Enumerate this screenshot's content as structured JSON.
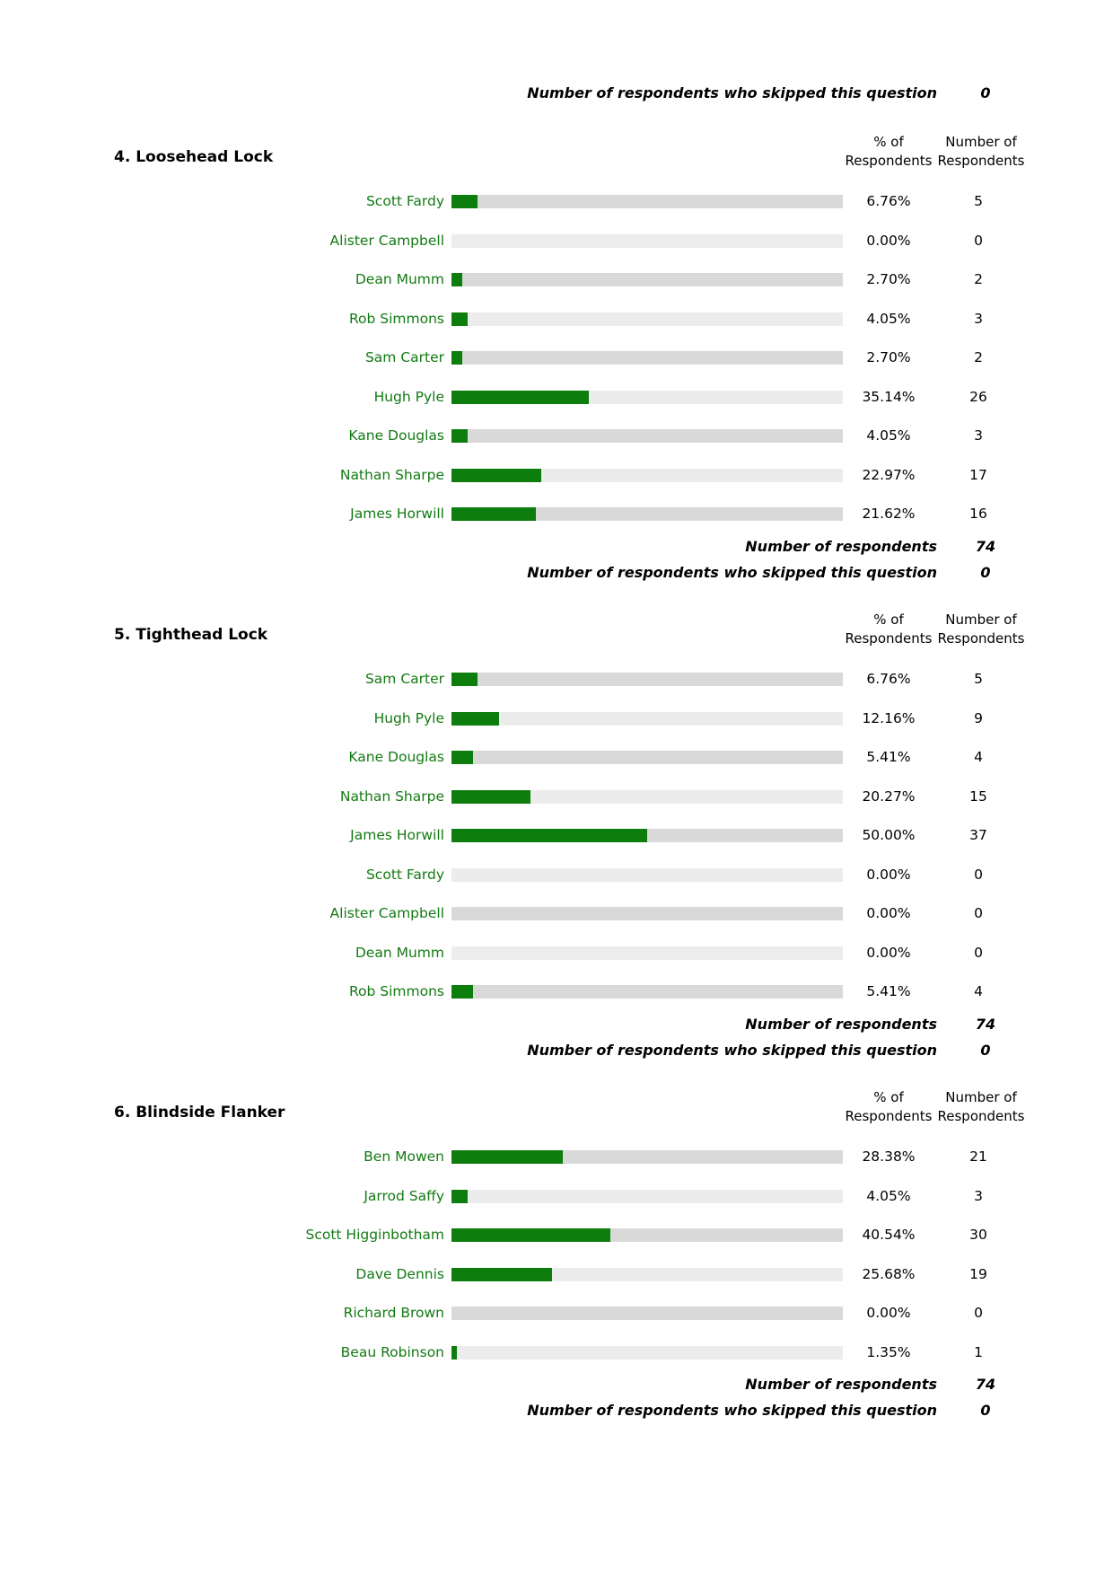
{
  "labels": {
    "pct_header_line1": "% of",
    "pct_header_line2": "Respondents",
    "num_header_line1": "Number of",
    "num_header_line2": "Respondents",
    "respondents": "Number of respondents",
    "skipped": "Number of respondents who skipped this question"
  },
  "top_summary": {
    "skipped_value": "0"
  },
  "colors": {
    "bar_fill": "#0d7d0d",
    "track_dark": "#d9d9d9",
    "track_light": "#ececec",
    "label": "#137a13"
  },
  "chart_data": [
    {
      "type": "bar",
      "title": "4. Loosehead Lock",
      "orientation": "horizontal",
      "xlim": [
        0,
        100
      ],
      "unit": "% of respondents",
      "categories": [
        "Scott Fardy",
        "Alister Campbell",
        "Dean Mumm",
        "Rob Simmons",
        "Sam Carter",
        "Hugh Pyle",
        "Kane Douglas",
        "Nathan Sharpe",
        "James Horwill"
      ],
      "values": [
        6.76,
        0.0,
        2.7,
        4.05,
        2.7,
        35.14,
        4.05,
        22.97,
        21.62
      ],
      "percent_labels": [
        "6.76%",
        "0.00%",
        "2.70%",
        "4.05%",
        "2.70%",
        "35.14%",
        "4.05%",
        "22.97%",
        "21.62%"
      ],
      "counts": [
        "5",
        "0",
        "2",
        "3",
        "2",
        "26",
        "3",
        "17",
        "16"
      ],
      "respondents": "74",
      "skipped": "0"
    },
    {
      "type": "bar",
      "title": "5. Tighthead Lock",
      "orientation": "horizontal",
      "xlim": [
        0,
        100
      ],
      "unit": "% of respondents",
      "categories": [
        "Sam Carter",
        "Hugh Pyle",
        "Kane Douglas",
        "Nathan Sharpe",
        "James Horwill",
        "Scott Fardy",
        "Alister Campbell",
        "Dean Mumm",
        "Rob Simmons"
      ],
      "values": [
        6.76,
        12.16,
        5.41,
        20.27,
        50.0,
        0.0,
        0.0,
        0.0,
        5.41
      ],
      "percent_labels": [
        "6.76%",
        "12.16%",
        "5.41%",
        "20.27%",
        "50.00%",
        "0.00%",
        "0.00%",
        "0.00%",
        "5.41%"
      ],
      "counts": [
        "5",
        "9",
        "4",
        "15",
        "37",
        "0",
        "0",
        "0",
        "4"
      ],
      "respondents": "74",
      "skipped": "0"
    },
    {
      "type": "bar",
      "title": "6. Blindside Flanker",
      "orientation": "horizontal",
      "xlim": [
        0,
        100
      ],
      "unit": "% of respondents",
      "categories": [
        "Ben Mowen",
        "Jarrod Saffy",
        "Scott Higginbotham",
        "Dave Dennis",
        "Richard Brown",
        "Beau Robinson"
      ],
      "values": [
        28.38,
        4.05,
        40.54,
        25.68,
        0.0,
        1.35
      ],
      "percent_labels": [
        "28.38%",
        "4.05%",
        "40.54%",
        "25.68%",
        "0.00%",
        "1.35%"
      ],
      "counts": [
        "21",
        "3",
        "30",
        "19",
        "0",
        "1"
      ],
      "respondents": "74",
      "skipped": "0"
    }
  ]
}
